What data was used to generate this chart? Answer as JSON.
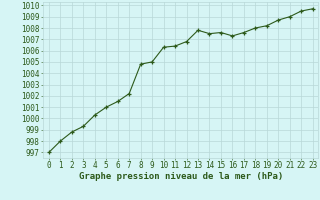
{
  "x": [
    0,
    1,
    2,
    3,
    4,
    5,
    6,
    7,
    8,
    9,
    10,
    11,
    12,
    13,
    14,
    15,
    16,
    17,
    18,
    19,
    20,
    21,
    22,
    23
  ],
  "y": [
    997.0,
    998.0,
    998.8,
    999.3,
    1000.3,
    1001.0,
    1001.5,
    1002.2,
    1004.8,
    1005.0,
    1006.3,
    1006.4,
    1006.8,
    1007.8,
    1007.5,
    1007.6,
    1007.3,
    1007.6,
    1008.0,
    1008.2,
    1008.7,
    1009.0,
    1009.5,
    1009.7
  ],
  "line_color": "#2d5a1b",
  "marker": "+",
  "bg_color": "#d6f5f5",
  "grid_color": "#b8d8d8",
  "axis_label_color": "#2d5a1b",
  "tick_color": "#2d5a1b",
  "xlabel": "Graphe pression niveau de la mer (hPa)",
  "ylim": [
    997,
    1010
  ],
  "xlim": [
    -0.5,
    23.5
  ],
  "yticks": [
    997,
    998,
    999,
    1000,
    1001,
    1002,
    1003,
    1004,
    1005,
    1006,
    1007,
    1008,
    1009,
    1010
  ],
  "xticks": [
    0,
    1,
    2,
    3,
    4,
    5,
    6,
    7,
    8,
    9,
    10,
    11,
    12,
    13,
    14,
    15,
    16,
    17,
    18,
    19,
    20,
    21,
    22,
    23
  ],
  "tick_fontsize": 5.5,
  "xlabel_fontsize": 6.5,
  "linewidth": 0.8,
  "markersize": 3.5
}
